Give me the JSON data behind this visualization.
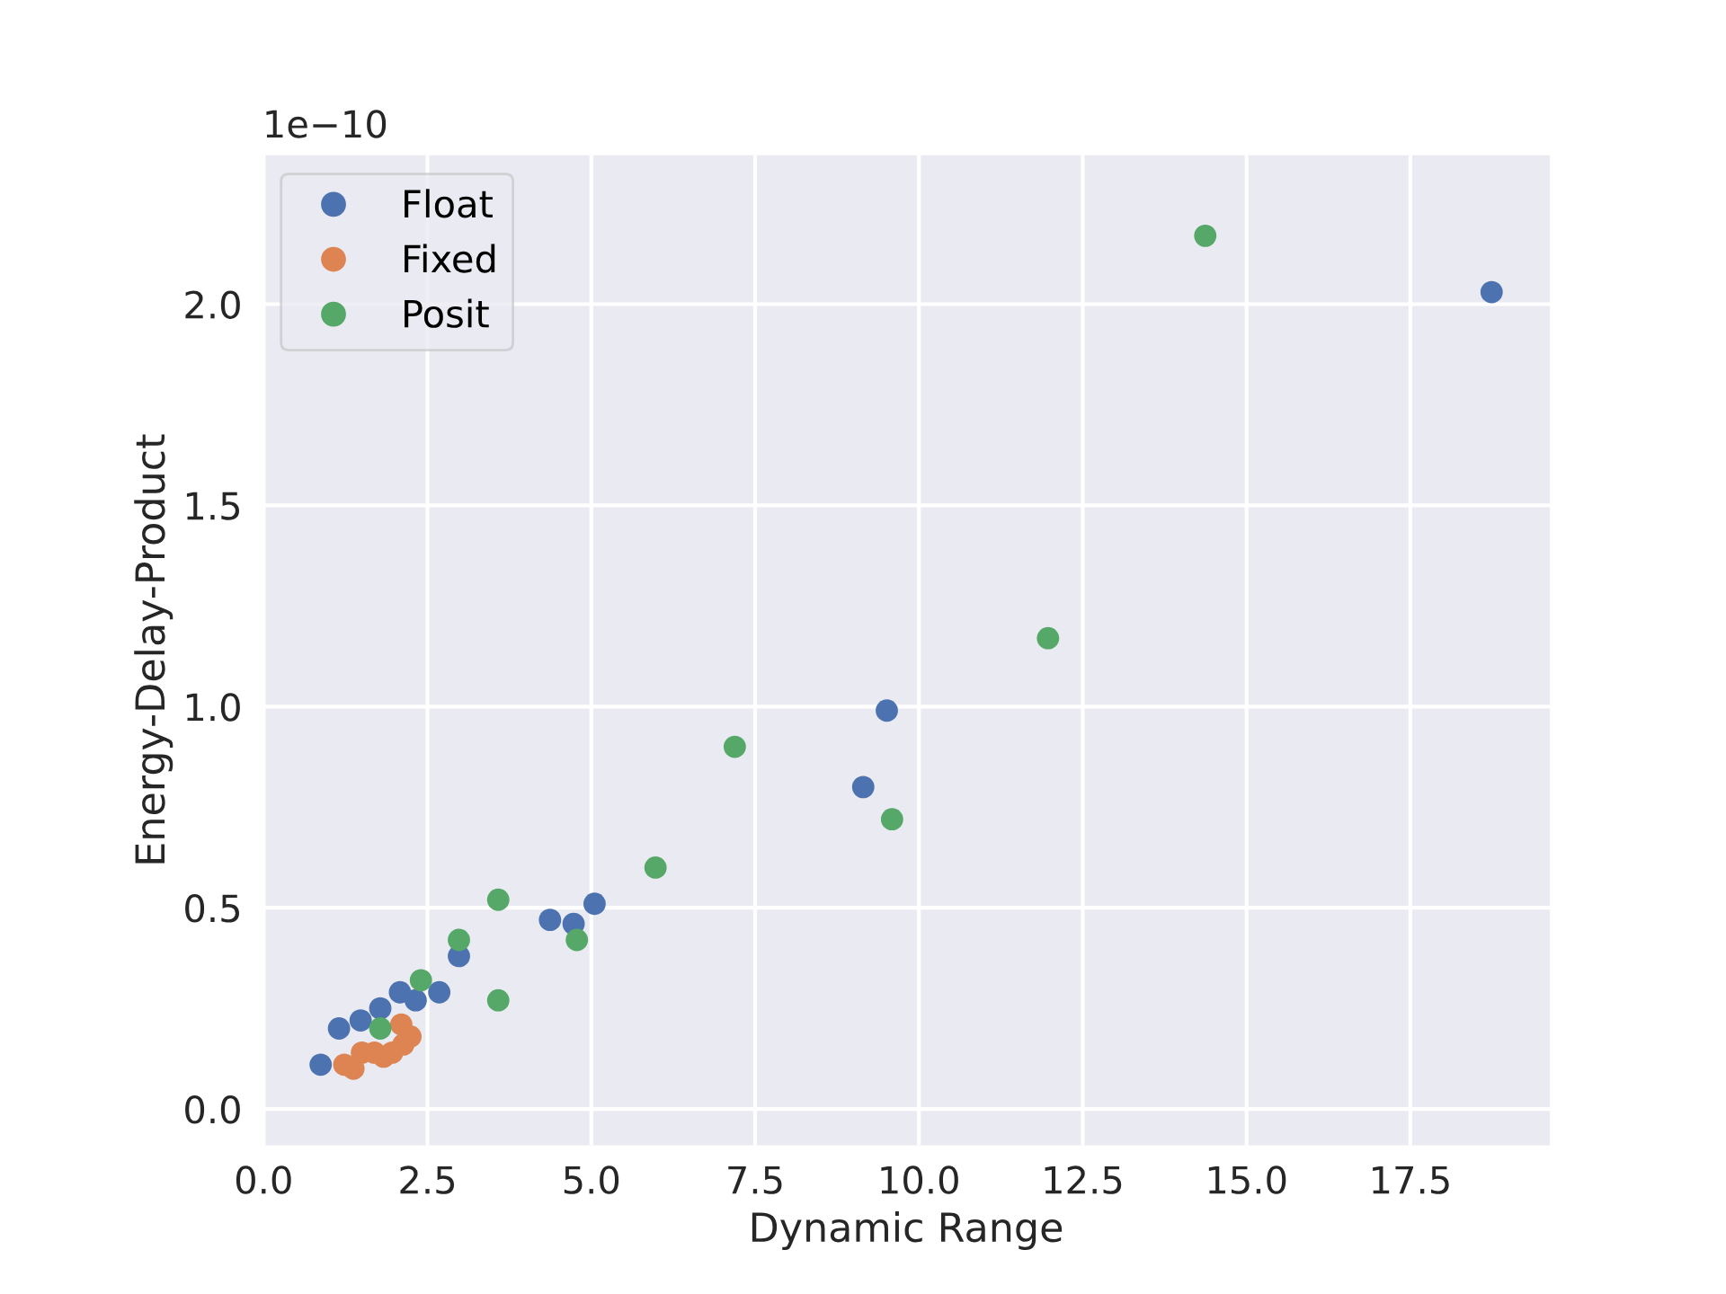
{
  "chart_data": {
    "type": "scatter",
    "xlabel": "Dynamic Range",
    "ylabel": "Energy-Delay-Product",
    "annotations": [
      "1e−10"
    ],
    "xlim": [
      -0.02,
      19.63
    ],
    "ylim": [
      -0.09,
      2.37
    ],
    "xticks": [
      {
        "value": 0,
        "label": "0.0"
      },
      2.5,
      {
        "value": 5,
        "label": "5.0"
      },
      7.5,
      {
        "value": 10,
        "label": "10.0"
      },
      12.5,
      {
        "value": 15,
        "label": "15.0"
      },
      17.5
    ],
    "yticks": [
      {
        "value": 0,
        "label": "0.0"
      },
      0.5,
      {
        "value": 1,
        "label": "1.0"
      },
      1.5,
      {
        "value": 2,
        "label": "2.0"
      }
    ],
    "grid": true,
    "legend": "top left",
    "marker": "circle",
    "series": [
      {
        "name": "Float",
        "color": "#4c72b0",
        "x": [
          0.87,
          1.15,
          1.48,
          1.78,
          2.08,
          2.32,
          2.68,
          2.98,
          4.37,
          4.73,
          5.05,
          9.15,
          9.51,
          18.74
        ],
        "values": [
          0.11,
          0.2,
          0.22,
          0.25,
          0.29,
          0.27,
          0.29,
          0.38,
          0.47,
          0.46,
          0.51,
          0.8,
          0.99,
          2.03
        ]
      },
      {
        "name": "Fixed",
        "color": "#dd8452",
        "x": [
          1.23,
          1.37,
          1.5,
          1.69,
          1.83,
          1.96,
          2.1,
          2.13,
          2.24
        ],
        "values": [
          0.11,
          0.1,
          0.14,
          0.14,
          0.13,
          0.14,
          0.21,
          0.16,
          0.18
        ]
      },
      {
        "name": "Posit",
        "color": "#55a868",
        "x": [
          1.78,
          2.4,
          2.98,
          3.58,
          3.58,
          4.78,
          5.98,
          7.19,
          9.59,
          11.97,
          14.37
        ],
        "values": [
          0.2,
          0.32,
          0.42,
          0.52,
          0.27,
          0.42,
          0.6,
          0.9,
          0.72,
          1.17,
          2.17
        ]
      }
    ]
  }
}
